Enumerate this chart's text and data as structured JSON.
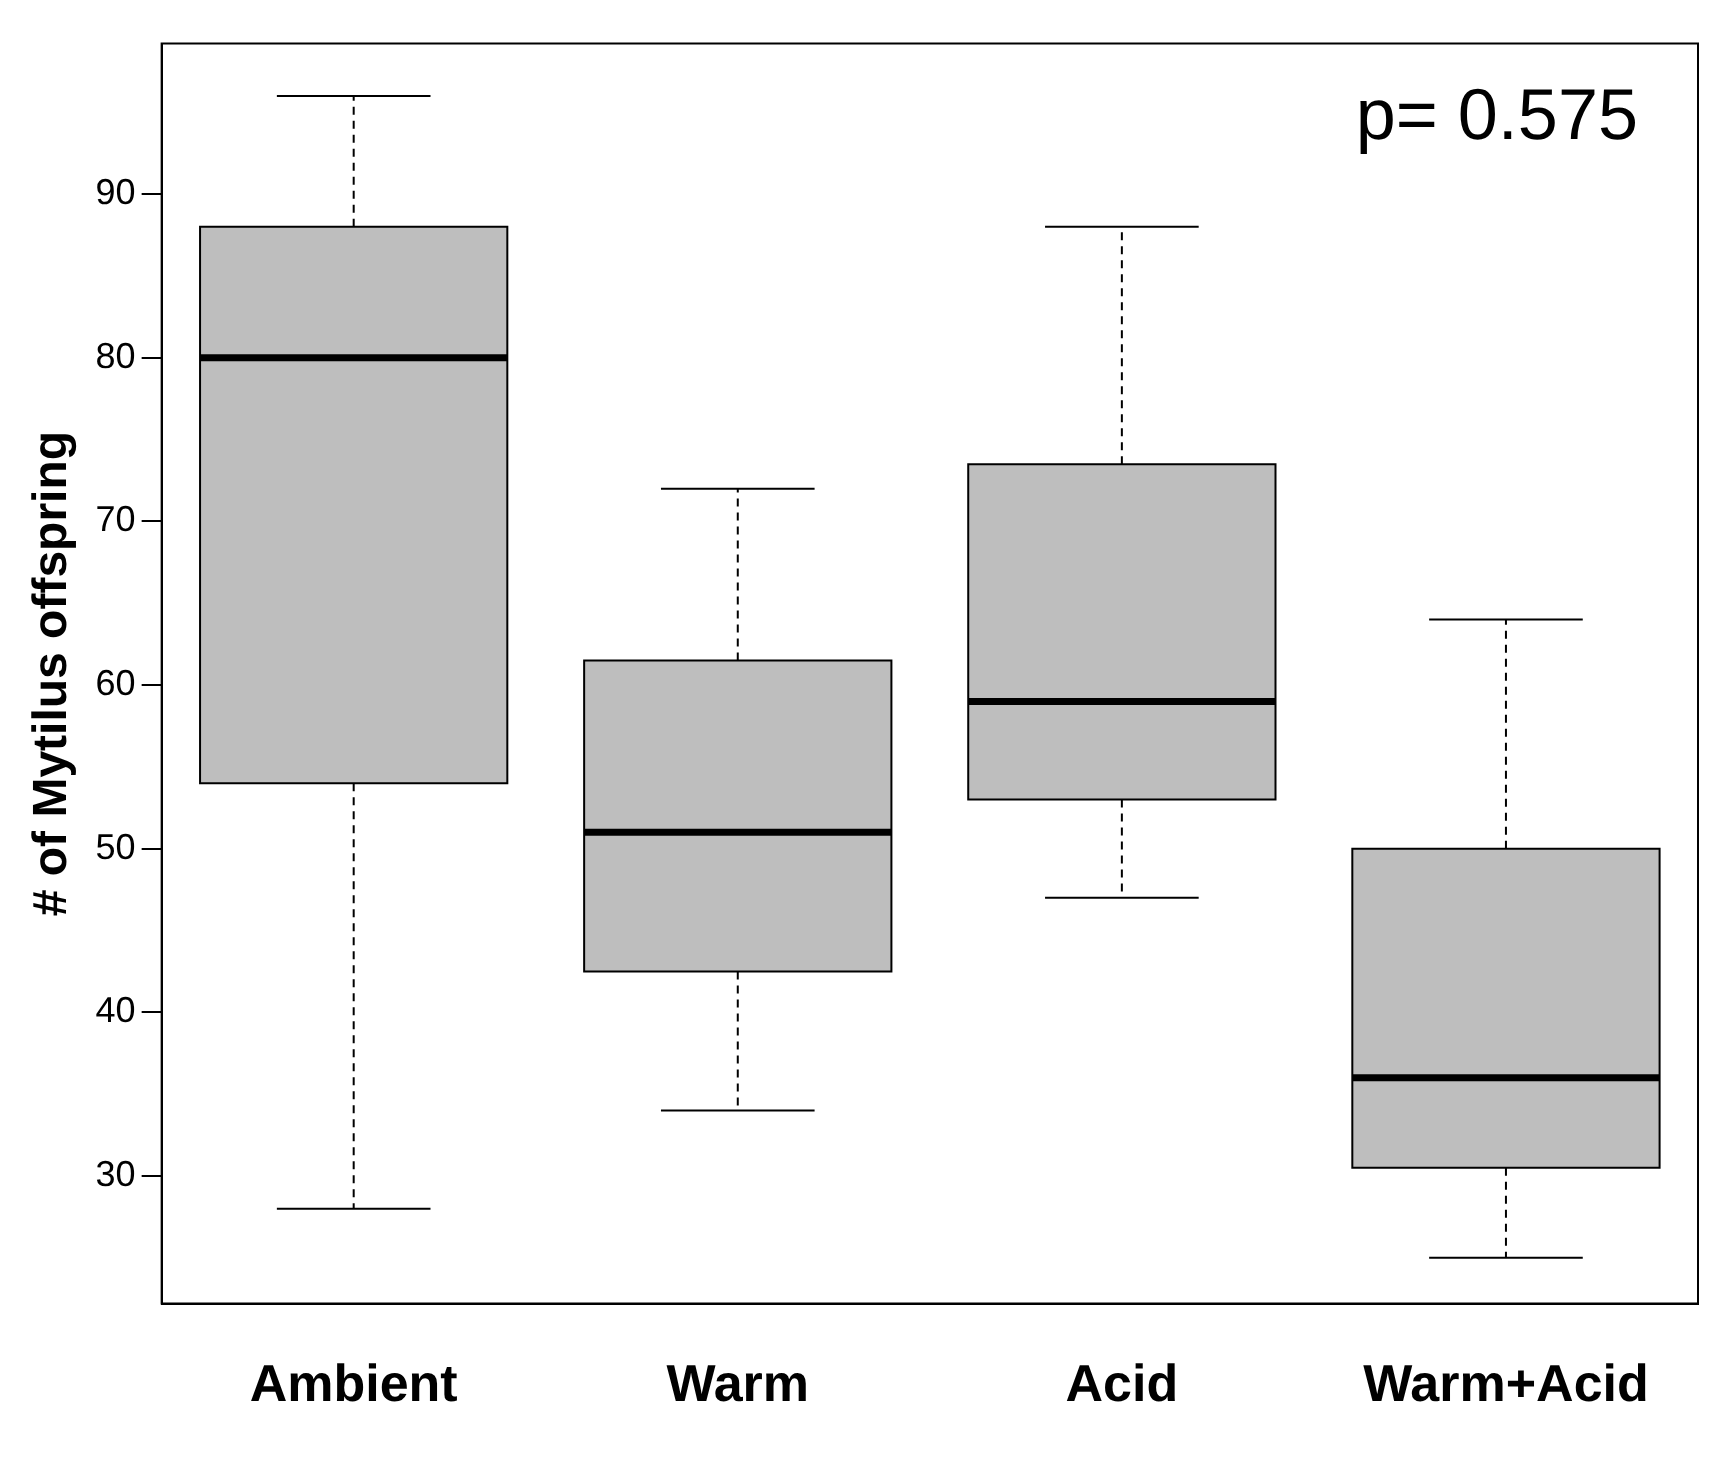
{
  "chart_data": {
    "type": "box",
    "ylabel": "# of Mytilus offspring",
    "categories": [
      "Ambient",
      "Warm",
      "Acid",
      "Warm+Acid"
    ],
    "color": "#bebebe",
    "ylim": [
      22.2,
      99.2
    ],
    "yticks": [
      30,
      40,
      50,
      60,
      70,
      80,
      90
    ],
    "grid": false,
    "legend": false,
    "boxes": [
      {
        "low": 28,
        "q1": 54,
        "median": 80,
        "q3": 88,
        "high": 96
      },
      {
        "low": 34,
        "q1": 42.5,
        "median": 51,
        "q3": 61.5,
        "high": 72
      },
      {
        "low": 47,
        "q1": 53,
        "median": 59,
        "q3": 73.5,
        "high": 88
      },
      {
        "low": 25,
        "q1": 30.5,
        "median": 36,
        "q3": 50,
        "high": 64
      }
    ],
    "annotations": [
      "p= 0.575"
    ]
  }
}
